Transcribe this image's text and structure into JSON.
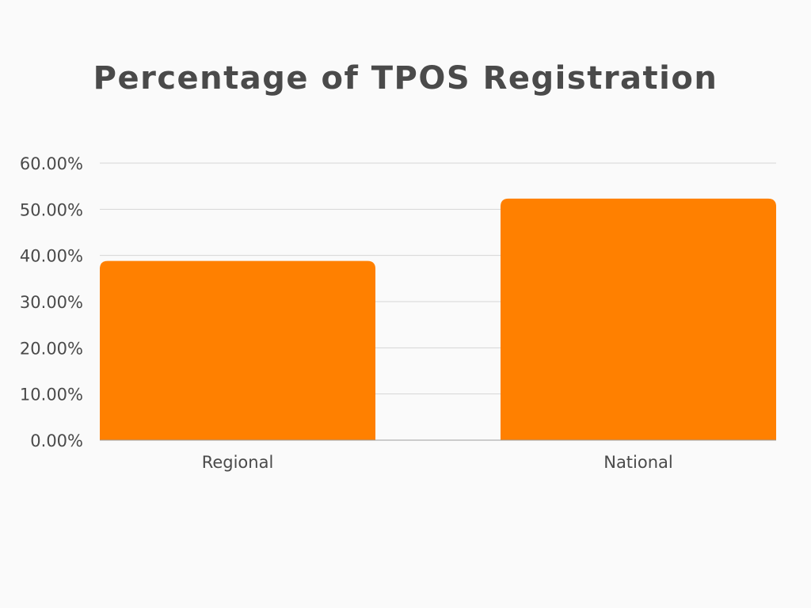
{
  "chart_data": {
    "type": "bar",
    "title": "Percentage of TPOS Registration",
    "categories": [
      "Regional",
      "National"
    ],
    "values": [
      38.8,
      52.3
    ],
    "xlabel": "",
    "ylabel": "",
    "ylim": [
      0,
      60
    ],
    "yticks": [
      "0.00%",
      "10.00%",
      "20.00%",
      "30.00%",
      "40.00%",
      "50.00%",
      "60.00%"
    ],
    "grid": true,
    "legend": "none",
    "bar_color": "#ff8000",
    "grid_color": "#d6d6d6",
    "text_color": "#4a4a4a"
  }
}
